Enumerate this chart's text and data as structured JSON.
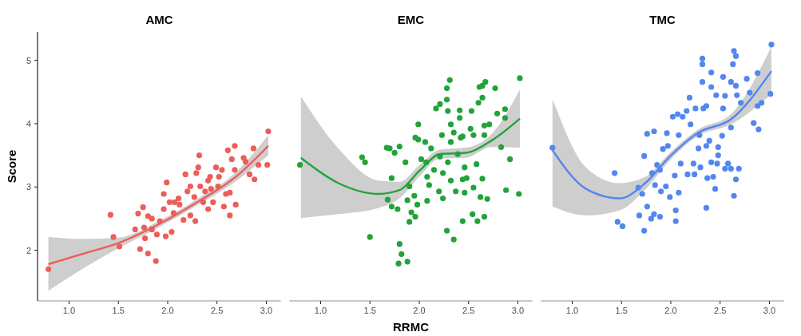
{
  "chart_data": [
    {
      "type": "scatter",
      "title": "AMC",
      "ylabel": "Score",
      "xlim": [
        0.68,
        3.15
      ],
      "ylim": [
        1.2,
        5.45
      ],
      "xticks": [
        {
          "value": 1,
          "label": "1.0"
        },
        {
          "value": 1.5,
          "label": "1.5"
        },
        {
          "value": 2,
          "label": "2.0"
        },
        {
          "value": 2.5,
          "label": "2.5"
        },
        {
          "value": 3,
          "label": "3.0"
        }
      ],
      "yticks": [
        2,
        3,
        4,
        5
      ],
      "grid": false,
      "series": [
        {
          "type": "scatter",
          "marker": "circle",
          "color": "#ec5e58",
          "x": [
            0.79,
            1.42,
            1.45,
            1.51,
            1.7,
            1.75,
            1.72,
            1.77,
            1.8,
            1.88,
            1.67,
            1.84,
            1.89,
            1.98,
            2.04,
            1.96,
            1.99,
            1.96,
            1.92,
            2.07,
            2.11,
            2.18,
            2.16,
            2.23,
            2.28,
            2.2,
            2.27,
            2.31,
            2.32,
            2.29,
            2.33,
            2.38,
            2.41,
            2.43,
            2.36,
            2.41,
            2.46,
            2.51,
            2.49,
            2.55,
            2.52,
            2.59,
            2.57,
            2.63,
            2.63,
            2.61,
            2.68,
            2.65,
            2.69,
            2.68,
            2.77,
            2.79,
            2.83,
            2.87,
            2.88,
            2.92,
            3.01,
            3.02,
            2.02,
            2.06,
            2.12,
            1.84,
            1.8,
            1.76,
            2.23,
            2.44
          ],
          "values": [
            1.7,
            2.56,
            2.21,
            2.06,
            2.58,
            2.68,
            2.02,
            2.19,
            1.95,
            1.83,
            2.33,
            2.5,
            2.25,
            2.22,
            2.29,
            2.89,
            3.07,
            2.65,
            2.46,
            2.76,
            2.82,
            3.2,
            2.48,
            2.55,
            2.46,
            2.93,
            2.84,
            3.31,
            3.5,
            3.22,
            3.01,
            2.93,
            3.1,
            3.16,
            2.76,
            2.65,
            2.76,
            3.01,
            3.31,
            3.27,
            3.16,
            2.89,
            2.69,
            2.55,
            2.91,
            3.58,
            3.65,
            3.44,
            2.72,
            3.27,
            3.46,
            3.4,
            3.2,
            3.61,
            3.12,
            3.35,
            3.35,
            3.88,
            2.76,
            2.59,
            2.72,
            2.33,
            2.54,
            2.36,
            3.01,
            2.97
          ]
        },
        {
          "type": "line",
          "marker": "none",
          "color": "#ec5e58",
          "x": [
            0.79,
            1.15,
            1.51,
            1.92,
            2.3,
            2.69,
            3.02
          ],
          "values": [
            1.78,
            1.95,
            2.12,
            2.42,
            2.76,
            3.16,
            3.65
          ],
          "lower": [
            1.36,
            1.72,
            2.04,
            2.37,
            2.71,
            3.09,
            3.5
          ],
          "upper": [
            2.21,
            2.18,
            2.2,
            2.47,
            2.81,
            3.23,
            3.82
          ]
        }
      ]
    },
    {
      "type": "scatter",
      "title": "EMC",
      "xlabel": "RRMC",
      "xlim": [
        0.68,
        3.15
      ],
      "ylim": [
        1.2,
        5.45
      ],
      "xticks": [
        {
          "value": 1,
          "label": "1.0"
        },
        {
          "value": 1.5,
          "label": "1.5"
        },
        {
          "value": 2,
          "label": "2.0"
        },
        {
          "value": 2.5,
          "label": "2.5"
        },
        {
          "value": 3,
          "label": "3.0"
        }
      ],
      "tick_labels": "x",
      "grid": false,
      "series": [
        {
          "type": "scatter",
          "marker": "circle",
          "color": "#22a33a",
          "x": [
            0.79,
            1.42,
            1.45,
            1.5,
            1.67,
            1.7,
            1.8,
            1.75,
            1.72,
            1.68,
            1.72,
            1.78,
            1.8,
            1.82,
            1.79,
            1.88,
            1.86,
            1.9,
            1.88,
            1.92,
            1.9,
            1.96,
            1.95,
            1.98,
            1.96,
            1.99,
            1.99,
            2.02,
            2.06,
            2.07,
            2.08,
            2.08,
            2.1,
            2.12,
            2.15,
            2.17,
            2.21,
            2.23,
            2.21,
            2.24,
            2.2,
            2.24,
            2.28,
            2.28,
            2.28,
            2.31,
            2.29,
            2.32,
            2.32,
            2.29,
            2.32,
            2.35,
            2.35,
            2.37,
            2.41,
            2.41,
            2.39,
            2.42,
            2.44,
            2.46,
            2.44,
            2.46,
            2.44,
            2.48,
            2.52,
            2.53,
            2.55,
            2.55,
            2.54,
            2.58,
            2.59,
            2.6,
            2.61,
            2.64,
            2.64,
            2.67,
            2.64,
            2.62,
            2.66,
            2.66,
            2.66,
            2.71,
            2.69,
            2.77,
            2.79,
            2.83,
            2.87,
            2.87,
            2.88,
            2.92,
            3.01,
            3.02
          ],
          "values": [
            3.35,
            3.47,
            3.39,
            2.21,
            3.62,
            3.61,
            3.64,
            3.54,
            3.14,
            2.8,
            2.69,
            2.65,
            2.1,
            1.94,
            1.79,
            1.82,
            3.39,
            3.01,
            2.79,
            2.6,
            2.45,
            2.53,
            2.86,
            2.72,
            3.78,
            3.99,
            3.75,
            3.44,
            3.71,
            3.39,
            3.16,
            2.78,
            3.03,
            3.61,
            3.27,
            4.24,
            4.31,
            3.82,
            3.48,
            3.22,
            2.93,
            2.82,
            2.31,
            4.38,
            4.56,
            4.69,
            4.2,
            3.99,
            3.71,
            3.39,
            3.1,
            2.17,
            3.86,
            2.93,
            4.21,
            4.09,
            3.52,
            3.78,
            3.8,
            3.31,
            3.12,
            2.91,
            2.46,
            3.14,
            3.92,
            4.2,
            3.82,
            2.99,
            2.57,
            3.36,
            2.46,
            4.33,
            4.58,
            4.41,
            4.6,
            4.66,
            3.13,
            2.84,
            2.53,
            3.82,
            3.97,
            3.99,
            2.81,
            4.56,
            4.16,
            3.63,
            4.23,
            4.09,
            2.95,
            3.44,
            2.89,
            4.72
          ]
        },
        {
          "type": "line",
          "marker": "none",
          "color": "#22a33a",
          "x": [
            0.8,
            1.18,
            1.59,
            1.8,
            2.01,
            2.21,
            2.47,
            2.73,
            3.02
          ],
          "values": [
            3.46,
            3.06,
            2.89,
            2.95,
            3.27,
            3.52,
            3.54,
            3.73,
            4.08
          ],
          "lower": [
            2.51,
            2.57,
            2.67,
            2.82,
            3.18,
            3.45,
            3.46,
            3.63,
            3.62
          ],
          "upper": [
            4.43,
            3.61,
            3.1,
            3.08,
            3.36,
            3.59,
            3.62,
            3.83,
            4.54
          ]
        }
      ]
    },
    {
      "type": "scatter",
      "title": "TMC",
      "xlim": [
        0.68,
        3.15
      ],
      "ylim": [
        1.2,
        5.45
      ],
      "xticks": [
        {
          "value": 1,
          "label": "1.0"
        },
        {
          "value": 1.5,
          "label": "1.5"
        },
        {
          "value": 2,
          "label": "2.0"
        },
        {
          "value": 2.5,
          "label": "2.5"
        },
        {
          "value": 3,
          "label": "3.0"
        }
      ],
      "tick_labels": "x",
      "grid": false,
      "series": [
        {
          "type": "scatter",
          "marker": "circle",
          "color": "#5486f0",
          "x": [
            0.8,
            1.43,
            1.46,
            1.51,
            1.67,
            1.68,
            1.71,
            1.73,
            1.73,
            1.76,
            1.8,
            1.83,
            1.76,
            1.83,
            1.81,
            1.84,
            1.86,
            1.89,
            1.89,
            1.9,
            1.92,
            1.95,
            1.96,
            1.97,
            1.99,
            2.05,
            2.05,
            2.02,
            2.04,
            2.07,
            2.08,
            2.08,
            2.1,
            2.12,
            2.16,
            2.17,
            2.19,
            2.2,
            2.23,
            2.24,
            2.25,
            2.28,
            2.29,
            2.32,
            2.32,
            2.32,
            2.3,
            2.33,
            2.36,
            2.36,
            2.36,
            2.39,
            2.37,
            2.41,
            2.41,
            2.41,
            2.43,
            2.45,
            2.46,
            2.47,
            2.48,
            2.48,
            2.52,
            2.53,
            2.53,
            2.55,
            2.55,
            2.58,
            2.61,
            2.61,
            2.61,
            2.63,
            2.64,
            2.66,
            2.66,
            2.67,
            2.66,
            2.64,
            2.69,
            2.71,
            2.77,
            2.8,
            2.84,
            2.88,
            2.88,
            2.89,
            2.92,
            3.01,
            3.02
          ],
          "values": [
            3.62,
            3.22,
            2.45,
            2.38,
            2.99,
            2.55,
            2.89,
            3.49,
            2.31,
            2.69,
            2.5,
            2.57,
            3.84,
            3.88,
            3.22,
            3.03,
            3.35,
            3.27,
            2.53,
            2.93,
            3.6,
            3.01,
            3.85,
            3.65,
            2.84,
            2.63,
            2.46,
            4.11,
            3.18,
            4.15,
            3.82,
            2.91,
            3.37,
            4.11,
            4.2,
            3.2,
            4.41,
            3.99,
            3.37,
            3.2,
            4.24,
            3.61,
            3.82,
            4.94,
            5.03,
            4.66,
            3.31,
            4.24,
            4.28,
            3.65,
            2.67,
            3.73,
            3.14,
            3.39,
            4.81,
            4.58,
            3.16,
            2.97,
            4.45,
            3.37,
            3.63,
            3.5,
            3.81,
            4.74,
            4.24,
            4.44,
            3.29,
            3.37,
            4.66,
            3.94,
            3.29,
            4.94,
            5.15,
            5.07,
            4.6,
            4.45,
            3.12,
            2.86,
            3.29,
            4.33,
            4.71,
            4.49,
            4.01,
            4.8,
            4.28,
            3.91,
            4.33,
            4.47,
            5.25
          ]
        },
        {
          "type": "line",
          "marker": "none",
          "color": "#5486f0",
          "x": [
            0.8,
            1.14,
            1.48,
            1.74,
            1.99,
            2.28,
            2.61,
            3.02
          ],
          "values": [
            3.58,
            2.97,
            2.82,
            3.06,
            3.48,
            3.86,
            4.07,
            4.83
          ],
          "lower": [
            2.69,
            2.55,
            2.63,
            2.96,
            3.42,
            3.81,
            3.99,
            4.47
          ],
          "upper": [
            4.39,
            3.31,
            3.06,
            3.16,
            3.54,
            3.91,
            4.15,
            5.22
          ]
        }
      ]
    }
  ]
}
